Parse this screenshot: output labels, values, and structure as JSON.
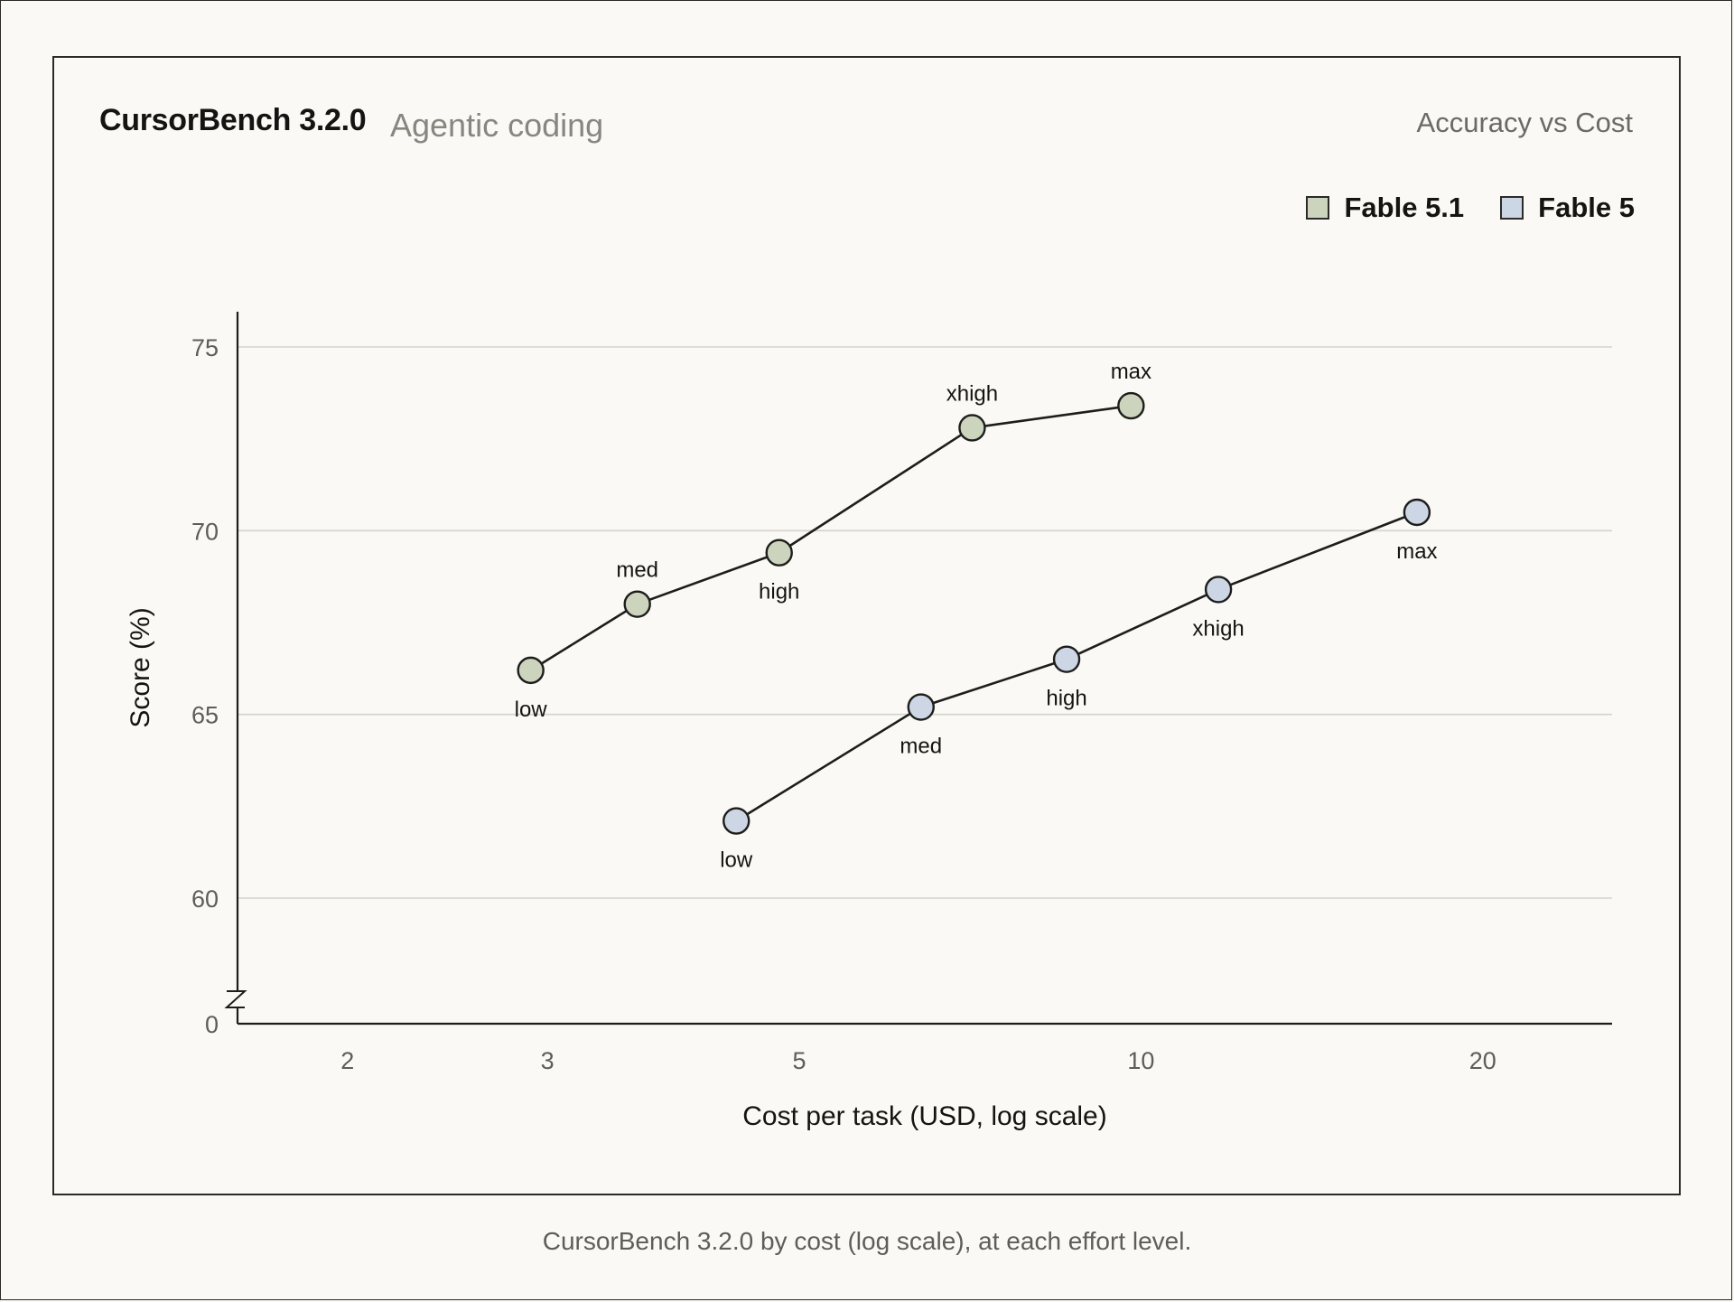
{
  "header": {
    "title": "CursorBench 3.2.0",
    "subtitle": "Agentic coding",
    "right_label": "Accuracy vs Cost"
  },
  "caption": "CursorBench 3.2.0 by cost (log scale), at each effort level.",
  "colors": {
    "fable_5_1": "#ccd4bd",
    "fable_5": "#ccd6e4",
    "line": "#1d1d1b",
    "grid": "#d4d3cc",
    "axis": "#1d1d1b"
  },
  "chart_data": {
    "type": "line",
    "title": "CursorBench 3.2.0",
    "subtitle": "Agentic coding",
    "xlabel": "Cost per task (USD, log scale)",
    "ylabel": "Score (%)",
    "xscale": "log",
    "xlim": [
      1.6,
      26
    ],
    "xticks": [
      2,
      3,
      5,
      10,
      20
    ],
    "ylim": [
      56.6,
      76
    ],
    "yticks": [
      60,
      65,
      70,
      75
    ],
    "y_axis_break": true,
    "y_zero_label": "0",
    "grid": "horizontal",
    "legend_position": "top-right",
    "series": [
      {
        "name": "Fable 5.1",
        "color": "#ccd4bd",
        "points": [
          {
            "label": "low",
            "x": 2.9,
            "y": 66.2,
            "label_pos": "below"
          },
          {
            "label": "med",
            "x": 3.6,
            "y": 68.0,
            "label_pos": "above"
          },
          {
            "label": "high",
            "x": 4.8,
            "y": 69.4,
            "label_pos": "below"
          },
          {
            "label": "xhigh",
            "x": 7.1,
            "y": 72.8,
            "label_pos": "above"
          },
          {
            "label": "max",
            "x": 9.8,
            "y": 73.4,
            "label_pos": "above"
          }
        ]
      },
      {
        "name": "Fable 5",
        "color": "#ccd6e4",
        "points": [
          {
            "label": "low",
            "x": 4.4,
            "y": 62.1,
            "label_pos": "below"
          },
          {
            "label": "med",
            "x": 6.4,
            "y": 65.2,
            "label_pos": "below"
          },
          {
            "label": "high",
            "x": 8.6,
            "y": 66.5,
            "label_pos": "below"
          },
          {
            "label": "xhigh",
            "x": 11.7,
            "y": 68.4,
            "label_pos": "below"
          },
          {
            "label": "max",
            "x": 17.5,
            "y": 70.5,
            "label_pos": "below"
          }
        ]
      }
    ]
  }
}
